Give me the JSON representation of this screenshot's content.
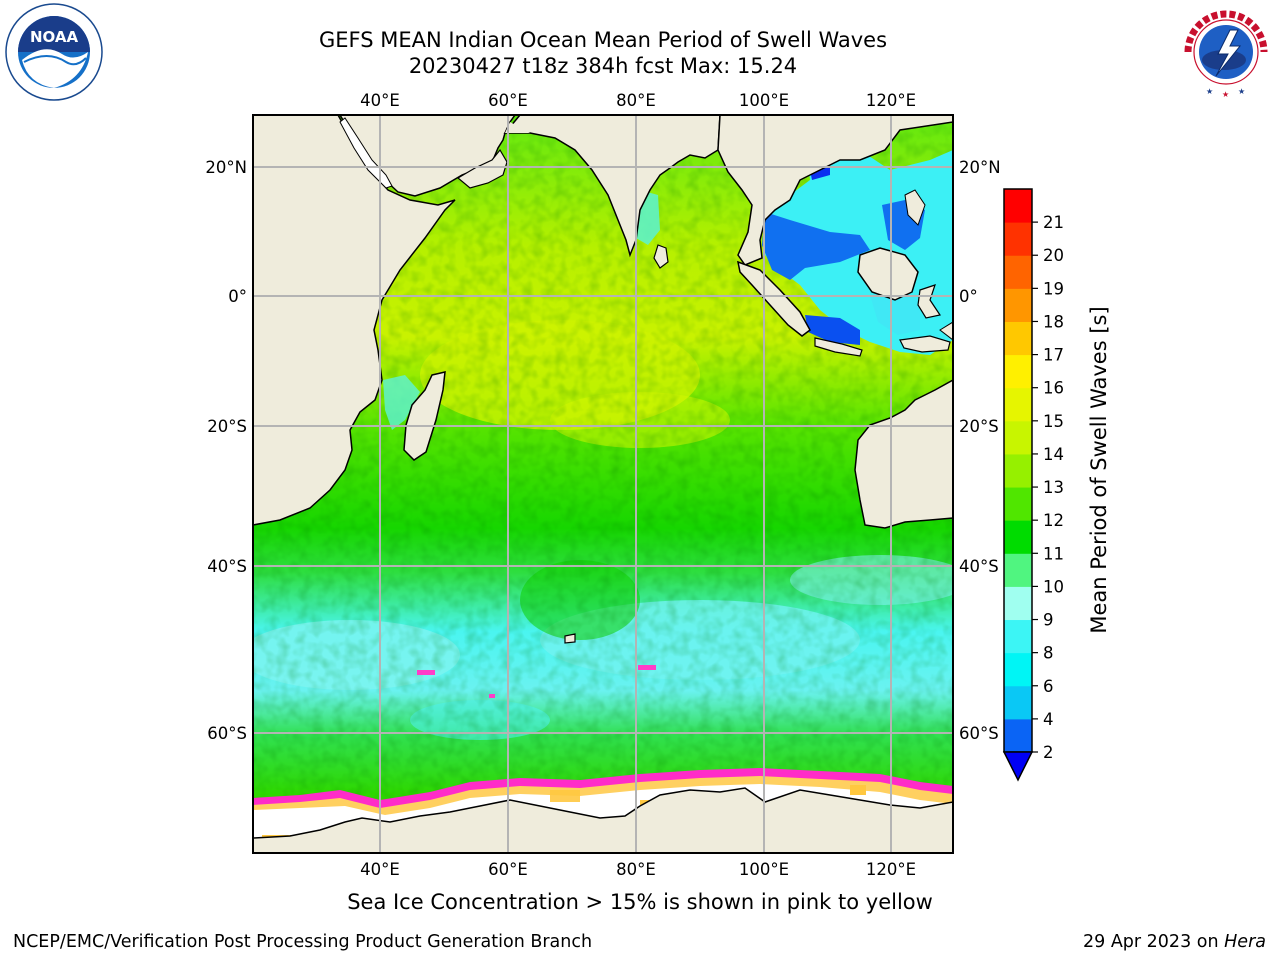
{
  "title": {
    "line1": "GEFS MEAN Indian Ocean Mean Period of Swell Waves",
    "line2": "20230427 t18z 384h fcst   Max: 15.24"
  },
  "map": {
    "region": "Indian Ocean",
    "lon_range": [
      20,
      130
    ],
    "lat_range": [
      -75,
      27
    ],
    "lon_ticks": [
      "40°E",
      "60°E",
      "80°E",
      "100°E",
      "120°E"
    ],
    "lat_ticks": [
      "20°N",
      "0°",
      "20°S",
      "40°S",
      "60°S"
    ],
    "land_color": "#efecdc",
    "ice_color": "#ffffff",
    "grid_color": "#b4b4b4"
  },
  "colorbar": {
    "label": "Mean Period of Swell Waves [s]",
    "ticks": [
      "2",
      "4",
      "6",
      "8",
      "9",
      "10",
      "11",
      "12",
      "13",
      "14",
      "15",
      "16",
      "17",
      "18",
      "19",
      "20",
      "21"
    ],
    "colors": [
      "#0a64f5",
      "#0ac8f5",
      "#00f5f5",
      "#3cf5f5",
      "#a0fff0",
      "#50f580",
      "#00dc00",
      "#50e600",
      "#96f000",
      "#c8f500",
      "#e6f500",
      "#fff000",
      "#ffc800",
      "#ff9600",
      "#ff6400",
      "#ff3200",
      "#ff0000"
    ],
    "extend_color": "#0000f5"
  },
  "bottom_note": "Sea Ice Concentration > 15% is shown in pink to yellow",
  "footer": {
    "left": "NCEP/EMC/Verification Post Processing Product Generation Branch",
    "right_date": "29 Apr 2023 on ",
    "right_host": "Hera"
  },
  "logos": {
    "noaa_text": "NOAA",
    "noaa_ring_text": "NATIONAL OCEANIC AND ATMOSPHERIC ADMINISTRATION",
    "noaa_dept_text": "U.S. DEPARTMENT OF COMMERCE",
    "nws_text": "NATIONAL WEATHER SERVICE"
  }
}
